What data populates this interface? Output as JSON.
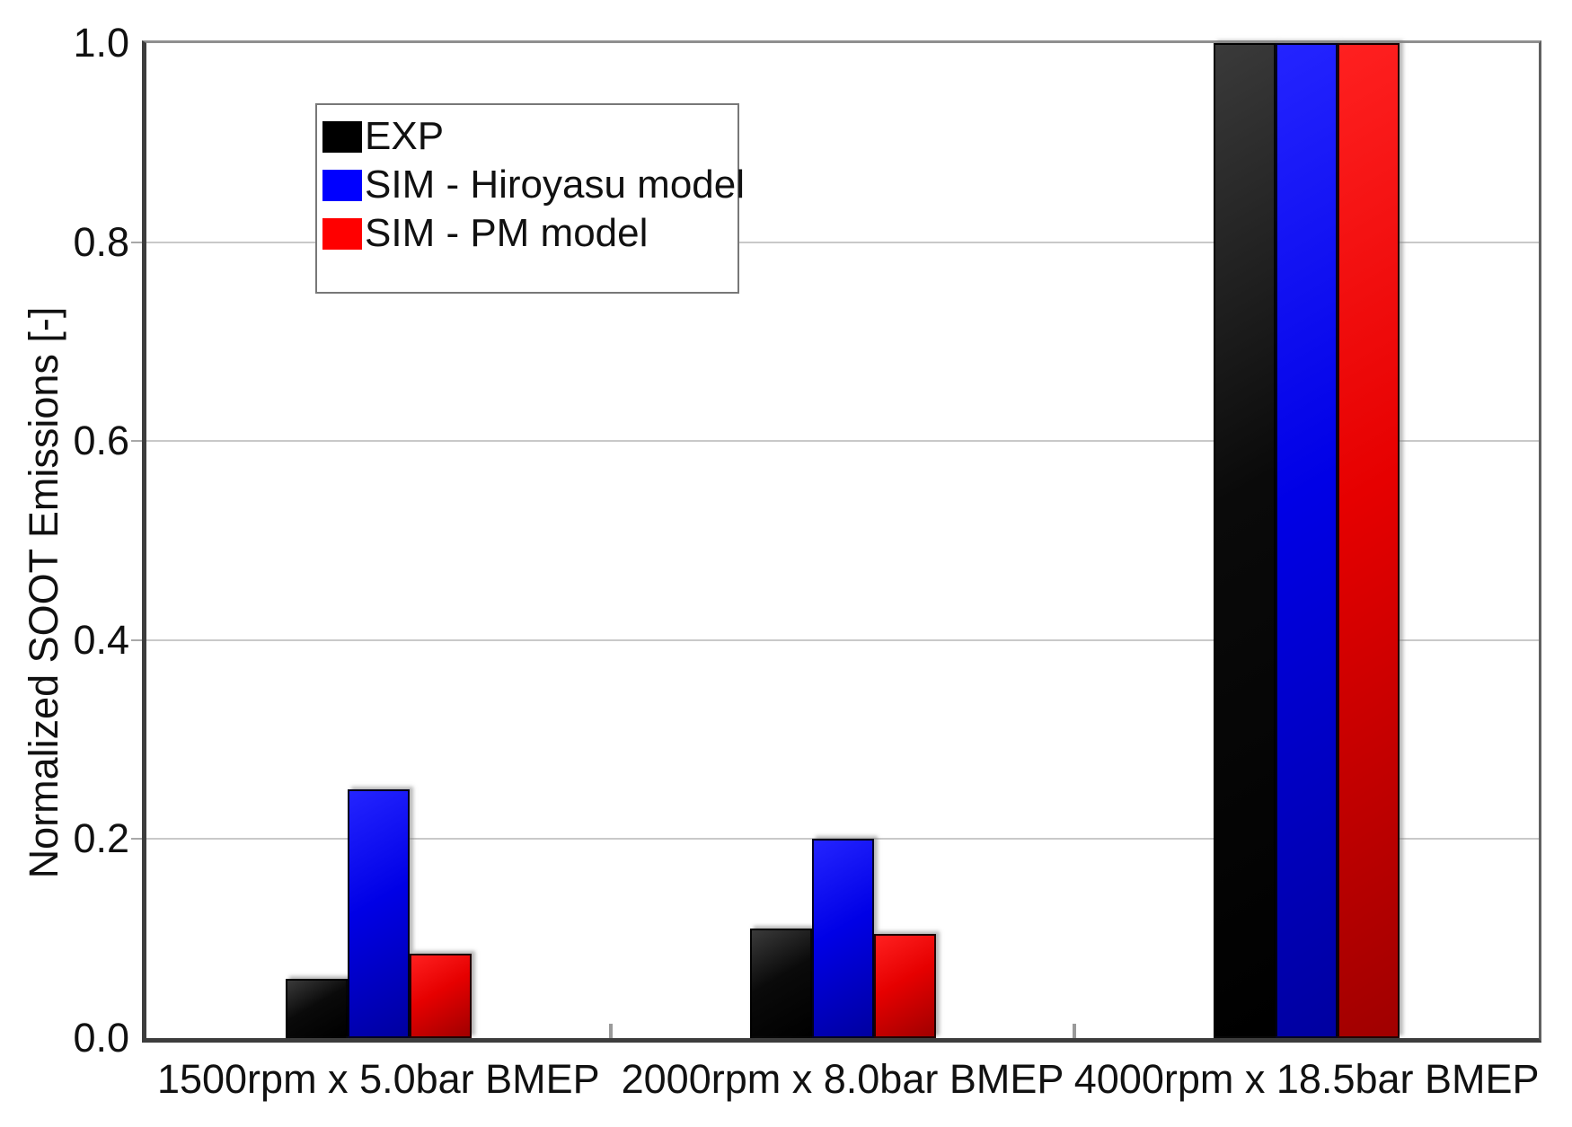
{
  "chart_data": {
    "type": "bar",
    "title": "",
    "xlabel": "",
    "ylabel": "Normalized SOOT Emissions [-]",
    "ylim": [
      0.0,
      1.0
    ],
    "yticks": [
      "0.0",
      "0.2",
      "0.4",
      "0.6",
      "0.8",
      "1.0"
    ],
    "grid": true,
    "legend_position": "top-left",
    "categories": [
      "1500rpm x 5.0bar BMEP",
      "2000rpm x 8.0bar BMEP",
      "4000rpm x 18.5bar BMEP"
    ],
    "series": [
      {
        "name": "EXP",
        "color": "#000000",
        "values": [
          0.06,
          0.11,
          1.0
        ]
      },
      {
        "name": "SIM - Hiroyasu model",
        "color": "#0000ff",
        "values": [
          0.25,
          0.2,
          1.0
        ]
      },
      {
        "name": "SIM - PM model",
        "color": "#ff0000",
        "values": [
          0.085,
          0.105,
          1.0
        ]
      }
    ]
  }
}
